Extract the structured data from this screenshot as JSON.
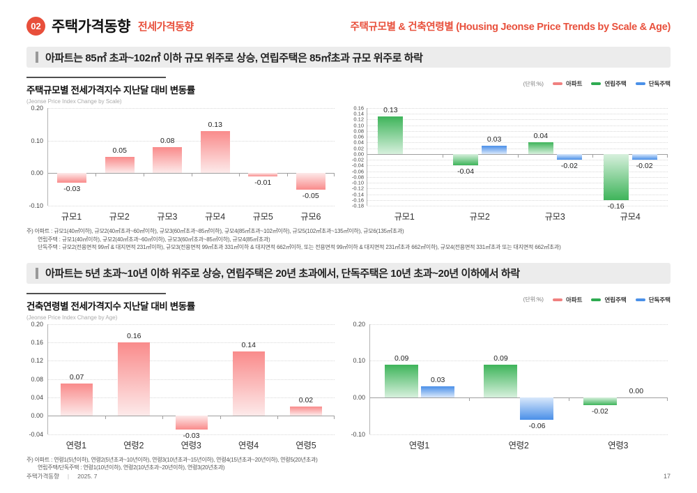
{
  "page": {
    "badge": "02",
    "title": "주택가격동향",
    "subtitle": "전세가격동향",
    "header_right": "주택규모별 & 건축연령별 (Housing Jeonse Price Trends by Scale & Age)",
    "footer": {
      "doc": "주택가격동향",
      "sep": "|",
      "date": "2025. 7",
      "page_no": "17"
    }
  },
  "colors": {
    "accent_red": "#e8503c",
    "apartment_red": "#f0807f",
    "rowhouse_green": "#2eab51",
    "detached_blue": "#4a90e8"
  },
  "sections": [
    {
      "callout": "아파트는 85㎡ 초과~102㎡ 이하 규모 위주로 상승, 연립주택은 85㎡초과 규모 위주로 하락",
      "chart_title": "주택규모별 전세가격지수 지난달 대비 변동률",
      "chart_subtitle": "(Jeonse Price Index Change by Scale)",
      "legend": {
        "unit": "(단위:%)",
        "items": [
          {
            "label": "아파트"
          },
          {
            "label": "연립주택"
          },
          {
            "label": "단독주택"
          }
        ]
      },
      "footnotes": [
        "주) 아파트 : 규모1(40㎡이하), 규모2(40㎡초과~60㎡이하), 규모3(60㎡초과~85㎡이하), 규모4(85㎡초과~102㎡이하), 규모5(102㎡초과~135㎡이하), 규모6(135㎡초과)",
        "연립주택 : 규모1(40㎡이하), 규모2(40㎡초과~60㎡이하), 규모3(60㎡초과~85㎡이하), 규모4(85㎡초과)",
        "단독주택 : 규모2(전용면적 99㎡ & 대지면적 231㎡이하), 규모3(전용면적 99㎡초과 331㎡이하 & 대지면적 662㎡이하, 또는 전용면적 99㎡이하 & 대지면적 231㎡초과 662㎡이하), 규모4(전용면적 331㎡초과 또는 대지면적 662㎡초과)"
      ]
    },
    {
      "callout": "아파트는 5년 초과~10년 이하 위주로 상승, 연립주택은 20년 초과에서, 단독주택은 10년 초과~20년 이하에서 하락",
      "chart_title": "건축연령별 전세가격지수 지난달 대비 변동률",
      "chart_subtitle": "(Jeonse Price Index Change by Age)",
      "legend": {
        "unit": "(단위:%)",
        "items": [
          {
            "label": "아파트"
          },
          {
            "label": "연립주택"
          },
          {
            "label": "단독주택"
          }
        ]
      },
      "footnotes": [
        "주) 아파트 : 연령1(5년이하), 연령2(5년초과~10년이하), 연령3(10년초과~15년이하), 연령4(15년초과~20년이하), 연령5(20년초과)",
        "연립주택/단독주택 : 연령1(10년이하), 연령2(10년초과~20년이하), 연령3(20년초과)"
      ]
    }
  ],
  "chart_data": [
    {
      "id": "jeonse-change-by-scale-apartment",
      "type": "bar",
      "title": "주택규모별 전세가격지수 지난달 대비 변동률",
      "subtitle": "(Jeonse Price Index Change by Scale)",
      "unit": "%",
      "categories": [
        "규모1",
        "규모2",
        "규모3",
        "규모4",
        "규모5",
        "규모6"
      ],
      "series": [
        {
          "name": "아파트",
          "style": "pink",
          "values": [
            -0.03,
            0.05,
            0.08,
            0.13,
            -0.01,
            -0.05
          ]
        }
      ],
      "yticks": [
        0.2,
        0.1,
        0.0,
        -0.1
      ],
      "ylim": [
        -0.1,
        0.2
      ],
      "grid": "dotted-horizontal",
      "legend_position": "top-right"
    },
    {
      "id": "jeonse-change-by-scale-rowhouse-detached",
      "type": "bar",
      "title": "주택규모별 전세가격지수 지난달 대비 변동률",
      "subtitle": "(Jeonse Price Index Change by Scale)",
      "unit": "%",
      "categories": [
        "규모1",
        "규모2",
        "규모3",
        "규모4"
      ],
      "series": [
        {
          "name": "연립주택",
          "style": "green",
          "values": [
            0.13,
            -0.04,
            0.04,
            -0.16
          ]
        },
        {
          "name": "단독주택",
          "style": "blue",
          "values": [
            null,
            0.03,
            -0.02,
            -0.02
          ]
        }
      ],
      "yticks": [
        0.16,
        0.14,
        0.12,
        0.1,
        0.08,
        0.06,
        0.04,
        0.02,
        0.0,
        -0.02,
        -0.04,
        -0.06,
        -0.08,
        -0.1,
        -0.12,
        -0.14,
        -0.16,
        -0.18
      ],
      "ylim": [
        -0.18,
        0.16
      ],
      "grid": "dotted-horizontal",
      "legend_position": "top-right"
    },
    {
      "id": "jeonse-change-by-age-apartment",
      "type": "bar",
      "title": "건축연령별 전세가격지수 지난달 대비 변동률",
      "subtitle": "(Jeonse Price Index Change by Age)",
      "unit": "%",
      "categories": [
        "연령1",
        "연령2",
        "연령3",
        "연령4",
        "연령5"
      ],
      "series": [
        {
          "name": "아파트",
          "style": "pink",
          "values": [
            0.07,
            0.16,
            -0.03,
            0.14,
            0.02
          ]
        }
      ],
      "yticks": [
        0.2,
        0.16,
        0.12,
        0.08,
        0.04,
        0.0,
        -0.04
      ],
      "ylim": [
        -0.04,
        0.2
      ],
      "grid": "dotted-horizontal",
      "legend_position": "top-right"
    },
    {
      "id": "jeonse-change-by-age-rowhouse-detached",
      "type": "bar",
      "title": "건축연령별 전세가격지수 지난달 대비 변동률",
      "subtitle": "(Jeonse Price Index Change by Age)",
      "unit": "%",
      "categories": [
        "연령1",
        "연령2",
        "연령3"
      ],
      "series": [
        {
          "name": "연립주택",
          "style": "green",
          "values": [
            0.09,
            0.09,
            -0.02
          ]
        },
        {
          "name": "단독주택",
          "style": "blue",
          "values": [
            0.03,
            -0.06,
            0.0
          ]
        }
      ],
      "yticks": [
        0.2,
        0.1,
        0.0,
        -0.1
      ],
      "ylim": [
        -0.1,
        0.2
      ],
      "grid": "dotted-horizontal",
      "legend_position": "top-right"
    }
  ]
}
